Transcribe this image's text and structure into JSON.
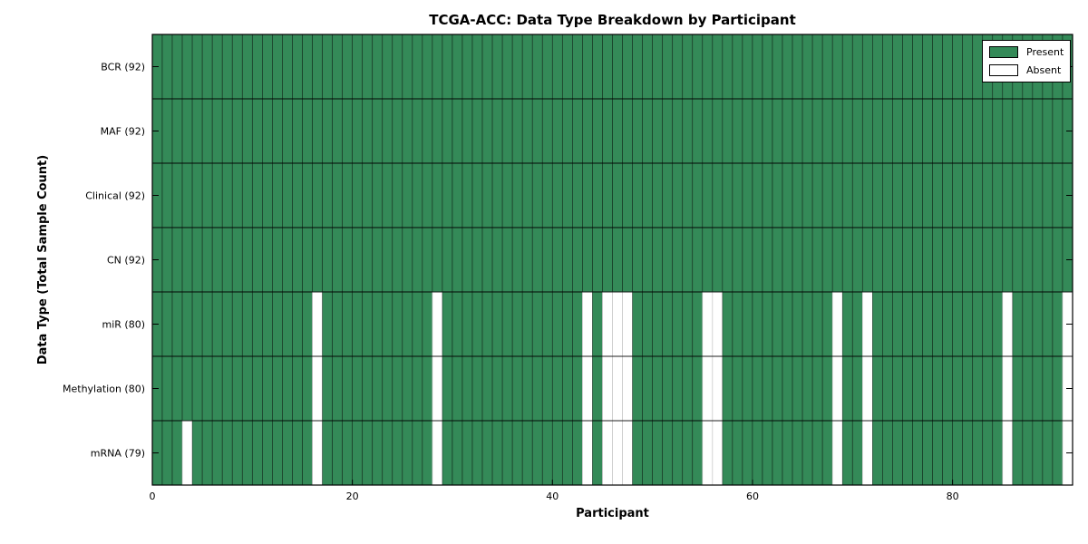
{
  "chart_data": {
    "type": "heatmap",
    "title": "TCGA-ACC: Data Type Breakdown by Participant",
    "xlabel": "Participant",
    "ylabel": "Data Type (Total Sample Count)",
    "n_participants": 92,
    "x_ticks": [
      0,
      20,
      40,
      60,
      80
    ],
    "rows": [
      {
        "label": "BCR",
        "count": 92,
        "absent_participants": []
      },
      {
        "label": "MAF",
        "count": 92,
        "absent_participants": []
      },
      {
        "label": "Clinical",
        "count": 92,
        "absent_participants": []
      },
      {
        "label": "CN",
        "count": 92,
        "absent_participants": []
      },
      {
        "label": "miR",
        "count": 80,
        "absent_participants": [
          16,
          28,
          43,
          45,
          46,
          47,
          55,
          56,
          68,
          71,
          85,
          91
        ]
      },
      {
        "label": "Methylation",
        "count": 80,
        "absent_participants": [
          16,
          28,
          43,
          45,
          46,
          47,
          55,
          56,
          68,
          71,
          85,
          91
        ]
      },
      {
        "label": "mRNA",
        "count": 79,
        "absent_participants": [
          3,
          16,
          28,
          43,
          45,
          46,
          47,
          55,
          56,
          68,
          71,
          85,
          91
        ]
      }
    ],
    "legend": [
      {
        "label": "Present",
        "color": "#348a58"
      },
      {
        "label": "Absent",
        "color": "#ffffff"
      }
    ],
    "colors": {
      "present": "#348a58",
      "absent": "#ffffff",
      "present_edge": "rgba(0,0,0,0.55)",
      "absent_edge": "#c4c4c4",
      "row_divider": "rgba(0,0,0,0.85)",
      "spine": "#000000"
    },
    "legend_position": "upper right",
    "grid": false
  }
}
